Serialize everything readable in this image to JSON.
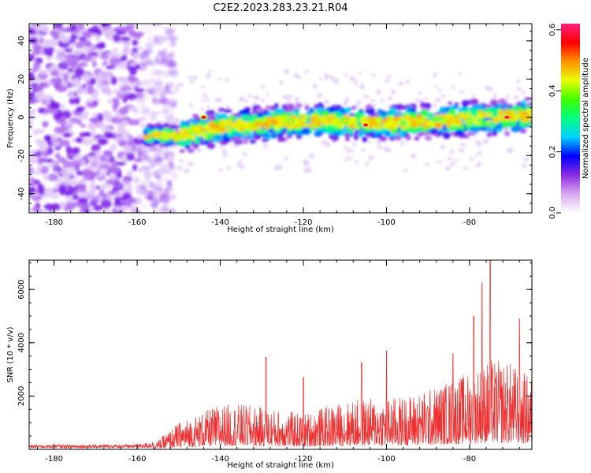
{
  "title": "C2E2.2023.283.23.21.R04",
  "chart_data": [
    {
      "type": "heatmap",
      "xlabel": "Height of straight line (km)",
      "ylabel": "Frequency (Hz)",
      "xlim": [
        -186,
        -65
      ],
      "ylim": [
        -50,
        49
      ],
      "x_ticks": [
        "-180",
        "-160",
        "-140",
        "-120",
        "-100",
        "-80"
      ],
      "y_ticks": [
        "-40",
        "-20",
        "0",
        "20",
        "40"
      ],
      "noise_region_x": [
        -186,
        -155
      ],
      "signal_band_center_hz": [
        {
          "x": -158,
          "y": -9
        },
        {
          "x": -150,
          "y": -10
        },
        {
          "x": -140,
          "y": -5
        },
        {
          "x": -120,
          "y": -2
        },
        {
          "x": -100,
          "y": -3
        },
        {
          "x": -80,
          "y": -1
        },
        {
          "x": -65,
          "y": 1
        }
      ],
      "signal_band_halfwidth_hz": 9,
      "peak_spots": [
        {
          "x": -144,
          "y": 0,
          "amp": 0.55
        },
        {
          "x": -123,
          "y": -2,
          "amp": 0.45
        },
        {
          "x": -110,
          "y": -2,
          "amp": 0.45
        },
        {
          "x": -105,
          "y": -4,
          "amp": 0.58
        },
        {
          "x": -96,
          "y": -3,
          "amp": 0.4
        },
        {
          "x": -88,
          "y": -1,
          "amp": 0.4
        },
        {
          "x": -80,
          "y": -2,
          "amp": 0.42
        },
        {
          "x": -71,
          "y": 0,
          "amp": 0.6
        }
      ],
      "colorbar": {
        "label": "Normalized spectral amplitude",
        "range": [
          0,
          0.62
        ],
        "ticks": [
          "0.0",
          "0.2",
          "0.4",
          "0.6"
        ],
        "colors": [
          "#ffffff",
          "#d8a8f0",
          "#8a2be2",
          "#0000ff",
          "#00d0ff",
          "#00ff80",
          "#40ff00",
          "#e8ff00",
          "#ff9000",
          "#ff0000",
          "#ff2080"
        ]
      }
    },
    {
      "type": "line",
      "xlabel": "Height of straight line (km)",
      "ylabel": "SNR (10 * v/v)",
      "xlim": [
        -186,
        -65
      ],
      "ylim": [
        0,
        7100
      ],
      "x_ticks": [
        "-180",
        "-160",
        "-140",
        "-120",
        "-100",
        "-80"
      ],
      "y_ticks": [
        "2000",
        "4000",
        "6000"
      ],
      "color": "#ee3030",
      "envelope_x": [
        -186,
        -160,
        -155,
        -150,
        -145,
        -140,
        -135,
        -130,
        -125,
        -120,
        -115,
        -110,
        -105,
        -100,
        -95,
        -90,
        -85,
        -80,
        -75,
        -70,
        -65
      ],
      "envelope_y": [
        130,
        150,
        300,
        900,
        1200,
        1500,
        1500,
        1400,
        1300,
        1200,
        1400,
        1600,
        1700,
        1700,
        1800,
        2000,
        2300,
        2600,
        3000,
        2900,
        2400
      ],
      "peaks": [
        {
          "x": -129,
          "y": 3450
        },
        {
          "x": -120,
          "y": 2700
        },
        {
          "x": -106,
          "y": 3250
        },
        {
          "x": -100,
          "y": 3700
        },
        {
          "x": -84,
          "y": 3600
        },
        {
          "x": -79,
          "y": 5000
        },
        {
          "x": -77,
          "y": 6250
        },
        {
          "x": -75,
          "y": 7100
        },
        {
          "x": -68,
          "y": 4900
        }
      ]
    }
  ]
}
